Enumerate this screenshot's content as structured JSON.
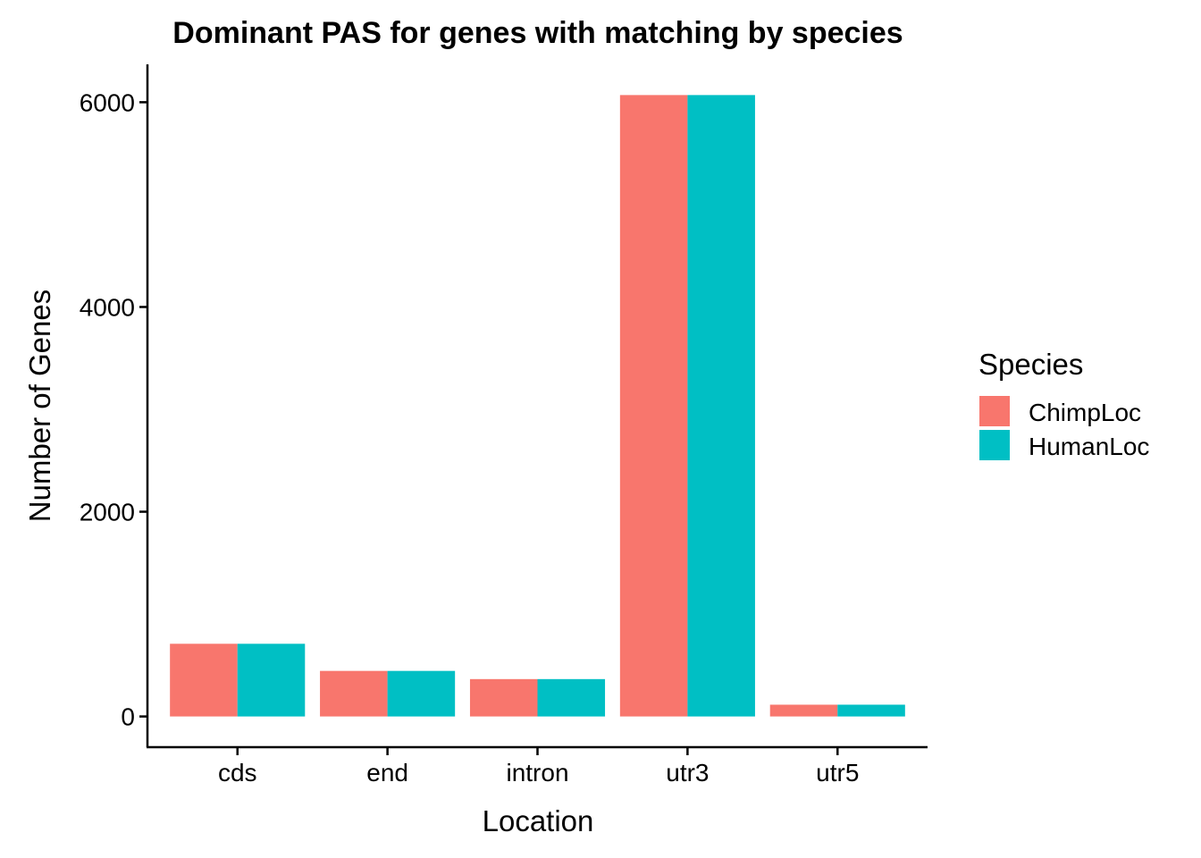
{
  "chart_data": {
    "type": "bar",
    "title": "Dominant PAS for genes with matching by species",
    "xlabel": "Location",
    "ylabel": "Number of Genes",
    "categories": [
      "cds",
      "end",
      "intron",
      "utr3",
      "utr5"
    ],
    "series": [
      {
        "name": "ChimpLoc",
        "color": "#F8766D",
        "values": [
          710,
          445,
          365,
          6070,
          115
        ]
      },
      {
        "name": "HumanLoc",
        "color": "#00BFC4",
        "values": [
          710,
          445,
          365,
          6070,
          115
        ]
      }
    ],
    "ylim": [
      -300,
      6370
    ],
    "yticks": [
      0,
      2000,
      4000,
      6000
    ],
    "ytick_labels": [
      "0",
      "2000",
      "4000",
      "6000"
    ],
    "grid": false,
    "legend": {
      "title": "Species",
      "position": "right"
    }
  }
}
